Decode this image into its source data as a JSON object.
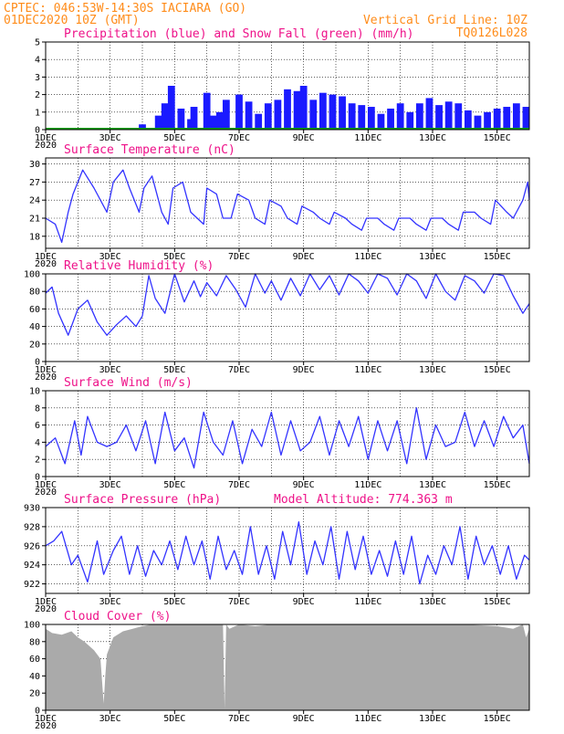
{
  "header": {
    "line1": "CPTEC:  046:53W-14:30S  IACIARA (GO)",
    "line2_left": "01DEC2020 10Z (GMT)",
    "line2_right": "Vertical Grid Line: 10Z",
    "line3_right": "TQ0126L028"
  },
  "colors": {
    "header": "#ff8c1a",
    "title": "#ee1289",
    "precip": "#1a1aff",
    "snow": "#00a000",
    "line": "#3333ff",
    "cloud": "#aaaaaa"
  },
  "x_axis": {
    "start_day": 1,
    "end_day": 16,
    "tick_labels": [
      "1DEC",
      "3DEC",
      "5DEC",
      "7DEC",
      "9DEC",
      "11DEC",
      "13DEC",
      "15DEC"
    ],
    "year_label": "2020"
  },
  "chart_data": [
    {
      "id": "precip",
      "type": "bar",
      "title": "Precipitation (blue) and Snow Fall (green) (mm/h)",
      "ylim": [
        0,
        5
      ],
      "yticks": [
        0,
        1,
        2,
        3,
        4,
        5
      ],
      "series": [
        {
          "name": "Precipitation",
          "x": [
            4.0,
            4.5,
            4.7,
            4.9,
            5.2,
            5.5,
            5.6,
            6.0,
            6.2,
            6.4,
            6.6,
            7.0,
            7.3,
            7.6,
            7.9,
            8.2,
            8.5,
            8.8,
            9.0,
            9.3,
            9.6,
            9.9,
            10.2,
            10.5,
            10.8,
            11.1,
            11.4,
            11.7,
            12.0,
            12.3,
            12.6,
            12.9,
            13.2,
            13.5,
            13.8,
            14.1,
            14.4,
            14.7,
            15.0,
            15.3,
            15.6,
            15.9
          ],
          "values": [
            0.3,
            0.8,
            1.5,
            2.5,
            1.2,
            0.6,
            1.3,
            2.1,
            0.8,
            1.0,
            1.7,
            2.0,
            1.6,
            0.9,
            1.5,
            1.7,
            2.3,
            2.2,
            2.5,
            1.7,
            2.1,
            2.0,
            1.9,
            1.5,
            1.4,
            1.3,
            0.9,
            1.2,
            1.5,
            1.0,
            1.5,
            1.8,
            1.4,
            1.6,
            1.5,
            1.1,
            0.8,
            1.0,
            1.2,
            1.3,
            1.5,
            1.3
          ]
        },
        {
          "name": "Snow Fall",
          "x": [
            1,
            16
          ],
          "values": [
            0,
            0
          ]
        }
      ]
    },
    {
      "id": "temp",
      "type": "line",
      "title": "Surface Temperature (nC)",
      "ylim": [
        16,
        31
      ],
      "yticks": [
        18,
        21,
        24,
        27,
        30
      ],
      "x": [
        1.0,
        1.3,
        1.5,
        1.7,
        1.85,
        2.15,
        2.5,
        2.9,
        3.1,
        3.4,
        3.6,
        3.9,
        4.05,
        4.3,
        4.6,
        4.8,
        4.95,
        5.25,
        5.5,
        5.9,
        6.0,
        6.3,
        6.5,
        6.75,
        6.95,
        7.3,
        7.5,
        7.8,
        7.95,
        8.3,
        8.5,
        8.8,
        8.95,
        9.3,
        9.5,
        9.8,
        9.95,
        10.3,
        10.5,
        10.8,
        10.95,
        11.3,
        11.5,
        11.8,
        11.95,
        12.3,
        12.5,
        12.8,
        12.95,
        13.3,
        13.5,
        13.8,
        13.95,
        14.3,
        14.5,
        14.8,
        14.95,
        15.3,
        15.5,
        15.8,
        15.95,
        16.0
      ],
      "values": [
        21,
        20,
        17,
        22,
        25,
        29,
        26,
        22,
        27,
        29,
        26,
        22,
        26,
        28,
        22,
        20,
        26,
        27,
        22,
        20,
        26,
        25,
        21,
        21,
        25,
        24,
        21,
        20,
        24,
        23,
        21,
        20,
        23,
        22,
        21,
        20,
        22,
        21,
        20,
        19,
        21,
        21,
        20,
        19,
        21,
        21,
        20,
        19,
        21,
        21,
        20,
        19,
        22,
        22,
        21,
        20,
        24,
        22,
        21,
        24,
        27,
        24
      ]
    },
    {
      "id": "rh",
      "type": "line",
      "title": "Relative Humidity (%)",
      "ylim": [
        0,
        100
      ],
      "yticks": [
        0,
        20,
        40,
        60,
        80,
        100
      ],
      "x": [
        1.0,
        1.2,
        1.4,
        1.7,
        2.0,
        2.3,
        2.6,
        2.9,
        3.2,
        3.5,
        3.8,
        4.0,
        4.2,
        4.4,
        4.7,
        5.0,
        5.3,
        5.6,
        5.8,
        6.0,
        6.3,
        6.6,
        6.9,
        7.2,
        7.5,
        7.8,
        8.0,
        8.3,
        8.6,
        8.9,
        9.2,
        9.5,
        9.8,
        10.1,
        10.4,
        10.7,
        11.0,
        11.3,
        11.6,
        11.9,
        12.2,
        12.5,
        12.8,
        13.1,
        13.4,
        13.7,
        14.0,
        14.3,
        14.6,
        14.9,
        15.2,
        15.5,
        15.8,
        16.0
      ],
      "values": [
        78,
        85,
        55,
        30,
        60,
        70,
        45,
        30,
        42,
        52,
        40,
        52,
        98,
        72,
        55,
        100,
        68,
        92,
        74,
        90,
        75,
        98,
        82,
        62,
        100,
        78,
        92,
        70,
        95,
        75,
        100,
        82,
        98,
        76,
        100,
        92,
        78,
        100,
        95,
        76,
        100,
        92,
        72,
        100,
        80,
        70,
        98,
        92,
        78,
        100,
        98,
        75,
        55,
        66
      ]
    },
    {
      "id": "wind",
      "type": "line",
      "title": "Surface Wind (m/s)",
      "ylim": [
        0,
        10
      ],
      "yticks": [
        0,
        2,
        4,
        6,
        8,
        10
      ],
      "x": [
        1.0,
        1.3,
        1.6,
        1.9,
        2.1,
        2.3,
        2.6,
        2.9,
        3.2,
        3.5,
        3.8,
        4.1,
        4.4,
        4.7,
        5.0,
        5.3,
        5.6,
        5.9,
        6.2,
        6.5,
        6.8,
        7.1,
        7.4,
        7.7,
        8.0,
        8.3,
        8.6,
        8.9,
        9.2,
        9.5,
        9.8,
        10.1,
        10.4,
        10.7,
        11.0,
        11.3,
        11.6,
        11.9,
        12.2,
        12.5,
        12.8,
        13.1,
        13.4,
        13.7,
        14.0,
        14.3,
        14.6,
        14.9,
        15.2,
        15.5,
        15.8,
        16.0
      ],
      "values": [
        3.5,
        4.5,
        1.5,
        6.5,
        2.5,
        7.0,
        4.0,
        3.5,
        4.0,
        6.0,
        3.0,
        6.5,
        1.5,
        7.5,
        3.0,
        4.5,
        1.0,
        7.5,
        4.0,
        2.5,
        6.5,
        1.5,
        5.5,
        3.5,
        7.5,
        2.5,
        6.5,
        3.0,
        4.0,
        7.0,
        2.5,
        6.5,
        3.5,
        7.0,
        2.0,
        6.5,
        3.0,
        6.5,
        1.5,
        8.0,
        2.0,
        6.0,
        3.5,
        4.0,
        7.5,
        3.5,
        6.5,
        3.5,
        7.0,
        4.5,
        6.0,
        1.5
      ]
    },
    {
      "id": "pres",
      "type": "line",
      "title": "Surface Pressure (hPa)",
      "annotation": "Model Altitude: 774.363 m",
      "ylim": [
        921,
        930
      ],
      "yticks": [
        922,
        924,
        926,
        928,
        930
      ],
      "x": [
        1.0,
        1.25,
        1.5,
        1.8,
        2.0,
        2.3,
        2.6,
        2.8,
        3.1,
        3.35,
        3.6,
        3.85,
        4.1,
        4.35,
        4.6,
        4.85,
        5.1,
        5.35,
        5.6,
        5.85,
        6.1,
        6.35,
        6.6,
        6.85,
        7.1,
        7.35,
        7.6,
        7.85,
        8.1,
        8.35,
        8.6,
        8.85,
        9.1,
        9.35,
        9.6,
        9.85,
        10.1,
        10.35,
        10.6,
        10.85,
        11.1,
        11.35,
        11.6,
        11.85,
        12.1,
        12.35,
        12.6,
        12.85,
        13.1,
        13.35,
        13.6,
        13.85,
        14.1,
        14.35,
        14.6,
        14.85,
        15.1,
        15.35,
        15.6,
        15.85,
        16.0
      ],
      "values": [
        926,
        926.5,
        927.5,
        924,
        925,
        922.2,
        926.5,
        923,
        925.5,
        927,
        923,
        926,
        922.8,
        925.5,
        924,
        926.5,
        923.5,
        927,
        924,
        926.5,
        922.5,
        927,
        923.5,
        925.5,
        923,
        928,
        923,
        926,
        922.5,
        927.5,
        924,
        928.5,
        923,
        926.5,
        924,
        928,
        922.5,
        927.5,
        923.5,
        927,
        923,
        925.5,
        922.8,
        926.5,
        923,
        927,
        922,
        925,
        923,
        926,
        924,
        928,
        922.5,
        927,
        924,
        926,
        923,
        926,
        922.5,
        925,
        924.5
      ]
    },
    {
      "id": "cloud",
      "type": "area",
      "title": "Cloud Cover (%)",
      "ylim": [
        0,
        100
      ],
      "yticks": [
        0,
        20,
        40,
        60,
        80,
        100
      ],
      "x": [
        1.0,
        1.2,
        1.5,
        1.8,
        2.0,
        2.2,
        2.5,
        2.7,
        2.8,
        2.85,
        2.9,
        3.1,
        3.4,
        3.7,
        4.0,
        4.3,
        4.6,
        5.0,
        5.5,
        6.0,
        6.5,
        6.55,
        6.6,
        6.7,
        7.0,
        7.5,
        8.0,
        8.5,
        9.0,
        9.5,
        10.0,
        11.0,
        12.0,
        13.0,
        14.0,
        15.0,
        15.5,
        15.8,
        15.9,
        16.0
      ],
      "values": [
        95,
        90,
        88,
        92,
        85,
        80,
        70,
        60,
        8,
        40,
        65,
        85,
        92,
        95,
        98,
        100,
        100,
        100,
        100,
        100,
        100,
        2,
        100,
        95,
        100,
        98,
        100,
        100,
        100,
        100,
        100,
        100,
        100,
        100,
        100,
        98,
        95,
        100,
        85,
        95
      ]
    }
  ]
}
